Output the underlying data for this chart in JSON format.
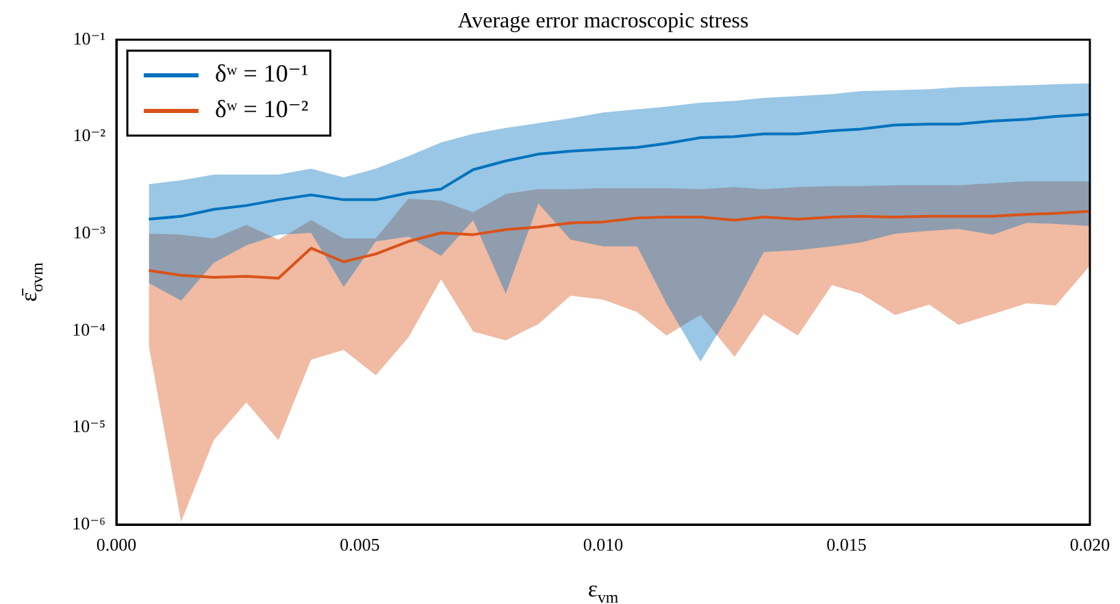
{
  "chart_data": {
    "type": "line",
    "title": "Average error macroscopic stress",
    "xlabel": "ε$_{vm}$",
    "ylabel": "ε̄$_{σvm}$",
    "x": [
      0.000667,
      0.00133,
      0.002,
      0.00267,
      0.00333,
      0.004,
      0.00467,
      0.00533,
      0.006,
      0.00667,
      0.00733,
      0.008,
      0.00867,
      0.00933,
      0.01,
      0.0107,
      0.0113,
      0.012,
      0.0127,
      0.0133,
      0.014,
      0.0147,
      0.0153,
      0.016,
      0.0167,
      0.0173,
      0.018,
      0.0187,
      0.0193,
      0.02
    ],
    "series": [
      {
        "name": "δʷ = 10⁻¹",
        "color": "#0072bd",
        "values": [
          0.00141,
          0.00151,
          0.00178,
          0.00195,
          0.00224,
          0.00251,
          0.00224,
          0.00224,
          0.00263,
          0.00288,
          0.00457,
          0.00562,
          0.00661,
          0.00708,
          0.00741,
          0.00776,
          0.00851,
          0.00977,
          0.01,
          0.0107,
          0.0107,
          0.0115,
          0.012,
          0.0132,
          0.0135,
          0.0135,
          0.0145,
          0.0151,
          0.0162,
          0.017
        ],
        "lower": [
          0.000309,
          0.000204,
          0.000501,
          0.000759,
          0.000977,
          0.00102,
          0.000282,
          0.000832,
          0.000933,
          0.000589,
          0.00138,
          0.00024,
          0.00204,
          0.000871,
          0.000741,
          0.000741,
          0.000191,
          4.79e-05,
          0.000178,
          0.000646,
          0.000676,
          0.000741,
          0.000813,
          0.001,
          0.00107,
          0.00112,
          0.000977,
          0.00129,
          0.00126,
          0.0012
        ],
        "upper": [
          0.00324,
          0.00355,
          0.00407,
          0.00407,
          0.00407,
          0.00468,
          0.0038,
          0.00468,
          0.00631,
          0.00871,
          0.0107,
          0.0123,
          0.0138,
          0.0155,
          0.0178,
          0.0191,
          0.0204,
          0.0224,
          0.0234,
          0.0251,
          0.0263,
          0.0275,
          0.0295,
          0.0302,
          0.0309,
          0.0324,
          0.0331,
          0.0339,
          0.0347,
          0.0355
        ]
      },
      {
        "name": "δʷ = 10⁻²",
        "color": "#d95319",
        "values": [
          0.000417,
          0.000372,
          0.000355,
          0.000363,
          0.000347,
          0.000708,
          0.000513,
          0.000617,
          0.000832,
          0.00102,
          0.000977,
          0.0011,
          0.00117,
          0.00129,
          0.00132,
          0.00145,
          0.00148,
          0.00148,
          0.00138,
          0.00148,
          0.00141,
          0.00148,
          0.00151,
          0.00148,
          0.00151,
          0.00151,
          0.00151,
          0.00158,
          0.00162,
          0.0017
        ],
        "lower": [
          6.92e-05,
          1.07e-06,
          7.41e-06,
          1.82e-05,
          7.41e-06,
          5.01e-05,
          6.31e-05,
          3.47e-05,
          8.51e-05,
          0.000339,
          9.77e-05,
          7.94e-05,
          0.000117,
          0.000229,
          0.000209,
          0.000155,
          8.91e-05,
          0.000145,
          5.37e-05,
          0.000148,
          8.91e-05,
          0.000295,
          0.00024,
          0.000145,
          0.000186,
          0.000115,
          0.000148,
          0.000191,
          0.000182,
          0.000468
        ],
        "upper": [
          0.001,
          0.000977,
          0.000891,
          0.00123,
          0.000871,
          0.00138,
          0.000891,
          0.000891,
          0.00229,
          0.00219,
          0.00166,
          0.00257,
          0.00288,
          0.00288,
          0.00295,
          0.00295,
          0.00295,
          0.00288,
          0.00302,
          0.00288,
          0.00302,
          0.00309,
          0.00309,
          0.00316,
          0.00316,
          0.00316,
          0.00331,
          0.00347,
          0.00347,
          0.00347
        ]
      }
    ],
    "xlim": [
      0,
      0.02
    ],
    "xticks": [
      {
        "value": 0,
        "label": "0.000"
      },
      {
        "value": 0.005,
        "label": "0.005"
      },
      {
        "value": 0.01,
        "label": "0.010"
      },
      {
        "value": 0.015,
        "label": "0.015"
      },
      {
        "value": 0.02,
        "label": "0.020"
      }
    ],
    "ylim": [
      1e-06,
      0.1
    ],
    "yticks": [
      {
        "value": 1e-06,
        "label": "10⁻⁶"
      },
      {
        "value": 1e-05,
        "label": "10⁻⁵"
      },
      {
        "value": 0.0001,
        "label": "10⁻⁴"
      },
      {
        "value": 0.001,
        "label": "10⁻³"
      },
      {
        "value": 0.01,
        "label": "10⁻²"
      },
      {
        "value": 0.1,
        "label": "10⁻¹"
      }
    ],
    "log": "y",
    "grid": false,
    "legend": "top left",
    "marker": "none",
    "line_style": "solid"
  }
}
